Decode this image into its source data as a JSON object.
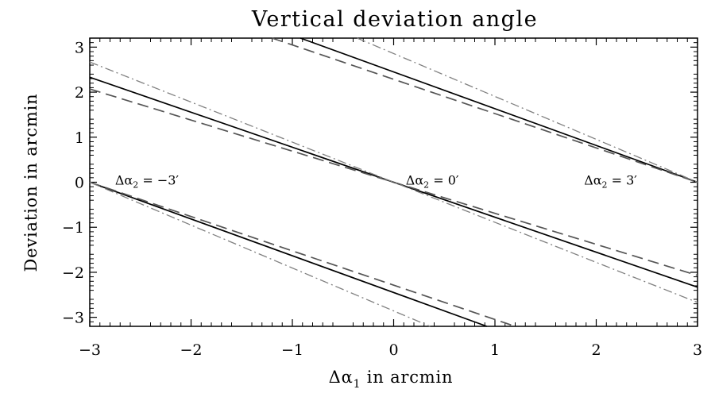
{
  "chart_data": {
    "type": "line",
    "title": "Vertical deviation angle",
    "xlabel": "Δα1 in arcmin",
    "xlabel_base": "Δα",
    "xlabel_sub": "1",
    "xlabel_rest": " in arcmin",
    "ylabel": "Deviation in arcmin",
    "xlim": [
      -3,
      3
    ],
    "ylim": [
      -3.2,
      3.2
    ],
    "xticks": [
      -3,
      -2,
      -1,
      0,
      1,
      2,
      3
    ],
    "xtick_labels": [
      "−3",
      "−2",
      "−1",
      "0",
      "1",
      "2",
      "3"
    ],
    "yticks": [
      -3,
      -2,
      -1,
      0,
      1,
      2,
      3
    ],
    "ytick_labels": [
      "−3",
      "−2",
      "−1",
      "0",
      "1",
      "2",
      "3"
    ],
    "grid": false,
    "annotations": [
      {
        "text": "Δα2 = −3′",
        "base": "Δα",
        "sub": "2",
        "rest": "  =  −3′",
        "x": -2.75,
        "y": 0.05
      },
      {
        "text": "Δα2 = 0′",
        "base": "Δα",
        "sub": "2",
        "rest": " =  0′",
        "x": 0.12,
        "y": 0.05
      },
      {
        "text": "Δα2 = 3′",
        "base": "Δα",
        "sub": "2",
        "rest": " =  3′",
        "x": 1.88,
        "y": 0.05
      }
    ],
    "series": [
      {
        "group": "Δα2 = 3′",
        "style": "solid",
        "color": "#000000",
        "x": [
          -0.92,
          3
        ],
        "y": [
          3.2,
          0
        ]
      },
      {
        "group": "Δα2 = 3′",
        "style": "dashed",
        "color": "#555555",
        "x": [
          -1.2,
          3
        ],
        "y": [
          3.2,
          0
        ]
      },
      {
        "group": "Δα2 = 3′",
        "style": "dashdot",
        "color": "#808080",
        "x": [
          -0.36,
          3
        ],
        "y": [
          3.2,
          0
        ]
      },
      {
        "group": "Δα2 = 0′",
        "style": "solid",
        "color": "#000000",
        "x": [
          -3,
          3
        ],
        "y": [
          2.33,
          -2.33
        ]
      },
      {
        "group": "Δα2 = 0′",
        "style": "dashed",
        "color": "#555555",
        "x": [
          -3,
          3
        ],
        "y": [
          2.07,
          -2.07
        ]
      },
      {
        "group": "Δα2 = 0′",
        "style": "dashdot",
        "color": "#808080",
        "x": [
          -3,
          3
        ],
        "y": [
          2.67,
          -2.67
        ]
      },
      {
        "group": "Δα2 = −3′",
        "style": "solid",
        "color": "#000000",
        "x": [
          -3,
          0.92
        ],
        "y": [
          0,
          -3.2
        ]
      },
      {
        "group": "Δα2 = −3′",
        "style": "dashed",
        "color": "#555555",
        "x": [
          -3,
          1.2
        ],
        "y": [
          0,
          -3.2
        ]
      },
      {
        "group": "Δα2 = −3′",
        "style": "dashdot",
        "color": "#808080",
        "x": [
          -3,
          0.36
        ],
        "y": [
          0,
          -3.2
        ]
      }
    ]
  }
}
